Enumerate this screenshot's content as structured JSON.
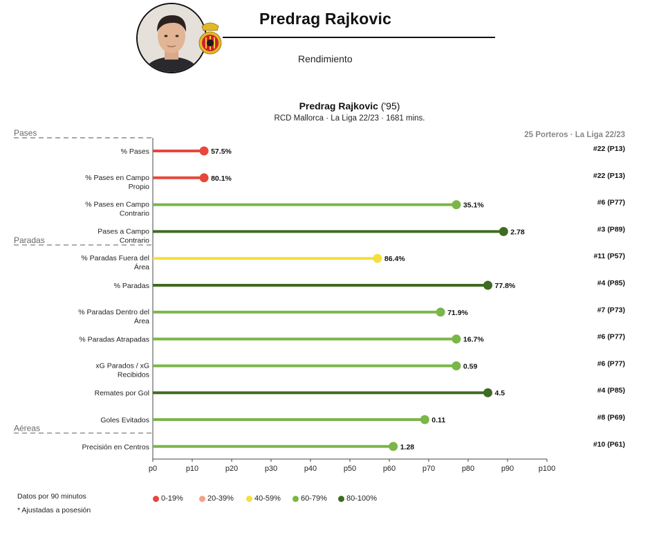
{
  "header": {
    "player_name": "Predrag Rajkovic",
    "subtitle": "Rendimiento",
    "avatar_icon": "player-photo",
    "crest_icon": "rcd-mallorca-crest"
  },
  "chart_data": {
    "type": "lollipop",
    "title": "Predrag Rajkovic",
    "title_suffix": "('95)",
    "subtitle": "RCD Mallorca · La Liga 22/23 · 1681 mins.",
    "cohort_label": "25 Porteros · La Liga 22/23",
    "xlim": [
      0,
      100
    ],
    "x_ticks": [
      "p0",
      "p10",
      "p20",
      "p30",
      "p40",
      "p50",
      "p60",
      "p70",
      "p80",
      "p90",
      "p100"
    ],
    "x_tick_values": [
      0,
      10,
      20,
      30,
      40,
      50,
      60,
      70,
      80,
      90,
      100
    ],
    "sections": [
      {
        "label": "Pases",
        "first_metric": 0
      },
      {
        "label": "Paradas",
        "first_metric": 4
      },
      {
        "label": "Aéreas",
        "first_metric": 11
      }
    ],
    "metrics": [
      {
        "label": [
          "% Pases"
        ],
        "percentile": 13,
        "value": "57.5%",
        "rank": "#22 (P13)"
      },
      {
        "label": [
          "% Pases en Campo",
          "Propio"
        ],
        "percentile": 13,
        "value": "80.1%",
        "rank": "#22 (P13)"
      },
      {
        "label": [
          "% Pases en Campo",
          "Contrario"
        ],
        "percentile": 77,
        "value": "35.1%",
        "rank": "#6 (P77)"
      },
      {
        "label": [
          "Pases a Campo",
          "Contrario"
        ],
        "percentile": 89,
        "value": "2.78",
        "rank": "#3 (P89)"
      },
      {
        "label": [
          "% Paradas Fuera del",
          "Área"
        ],
        "percentile": 57,
        "value": "86.4%",
        "rank": "#11 (P57)"
      },
      {
        "label": [
          "% Paradas"
        ],
        "percentile": 85,
        "value": "77.8%",
        "rank": "#4 (P85)"
      },
      {
        "label": [
          "% Paradas Dentro del",
          "Área"
        ],
        "percentile": 73,
        "value": "71.9%",
        "rank": "#7 (P73)"
      },
      {
        "label": [
          "% Paradas Atrapadas"
        ],
        "percentile": 77,
        "value": "16.7%",
        "rank": "#6 (P77)"
      },
      {
        "label": [
          "xG Parados / xG",
          "Recibidos"
        ],
        "percentile": 77,
        "value": "0.59",
        "rank": "#6 (P77)"
      },
      {
        "label": [
          "Remates por Gol"
        ],
        "percentile": 85,
        "value": "4.5",
        "rank": "#4 (P85)"
      },
      {
        "label": [
          "Goles Evitados"
        ],
        "percentile": 69,
        "value": "0.11",
        "rank": "#8 (P69)"
      },
      {
        "label": [
          "Precisión en Centros"
        ],
        "percentile": 61,
        "value": "1.28",
        "rank": "#10 (P61)"
      }
    ],
    "color_bands": [
      {
        "label": "0-19%",
        "min": 0,
        "max": 19,
        "color": "#e8473c"
      },
      {
        "label": "20-39%",
        "min": 20,
        "max": 39,
        "color": "#f4a185"
      },
      {
        "label": "40-59%",
        "min": 40,
        "max": 59,
        "color": "#f5df3a"
      },
      {
        "label": "60-79%",
        "min": 60,
        "max": 79,
        "color": "#7ab648"
      },
      {
        "label": "80-100%",
        "min": 80,
        "max": 100,
        "color": "#3f6b22"
      }
    ]
  },
  "notes": {
    "per90": "Datos por 90 minutos",
    "possession": "* Ajustadas a posesión"
  }
}
